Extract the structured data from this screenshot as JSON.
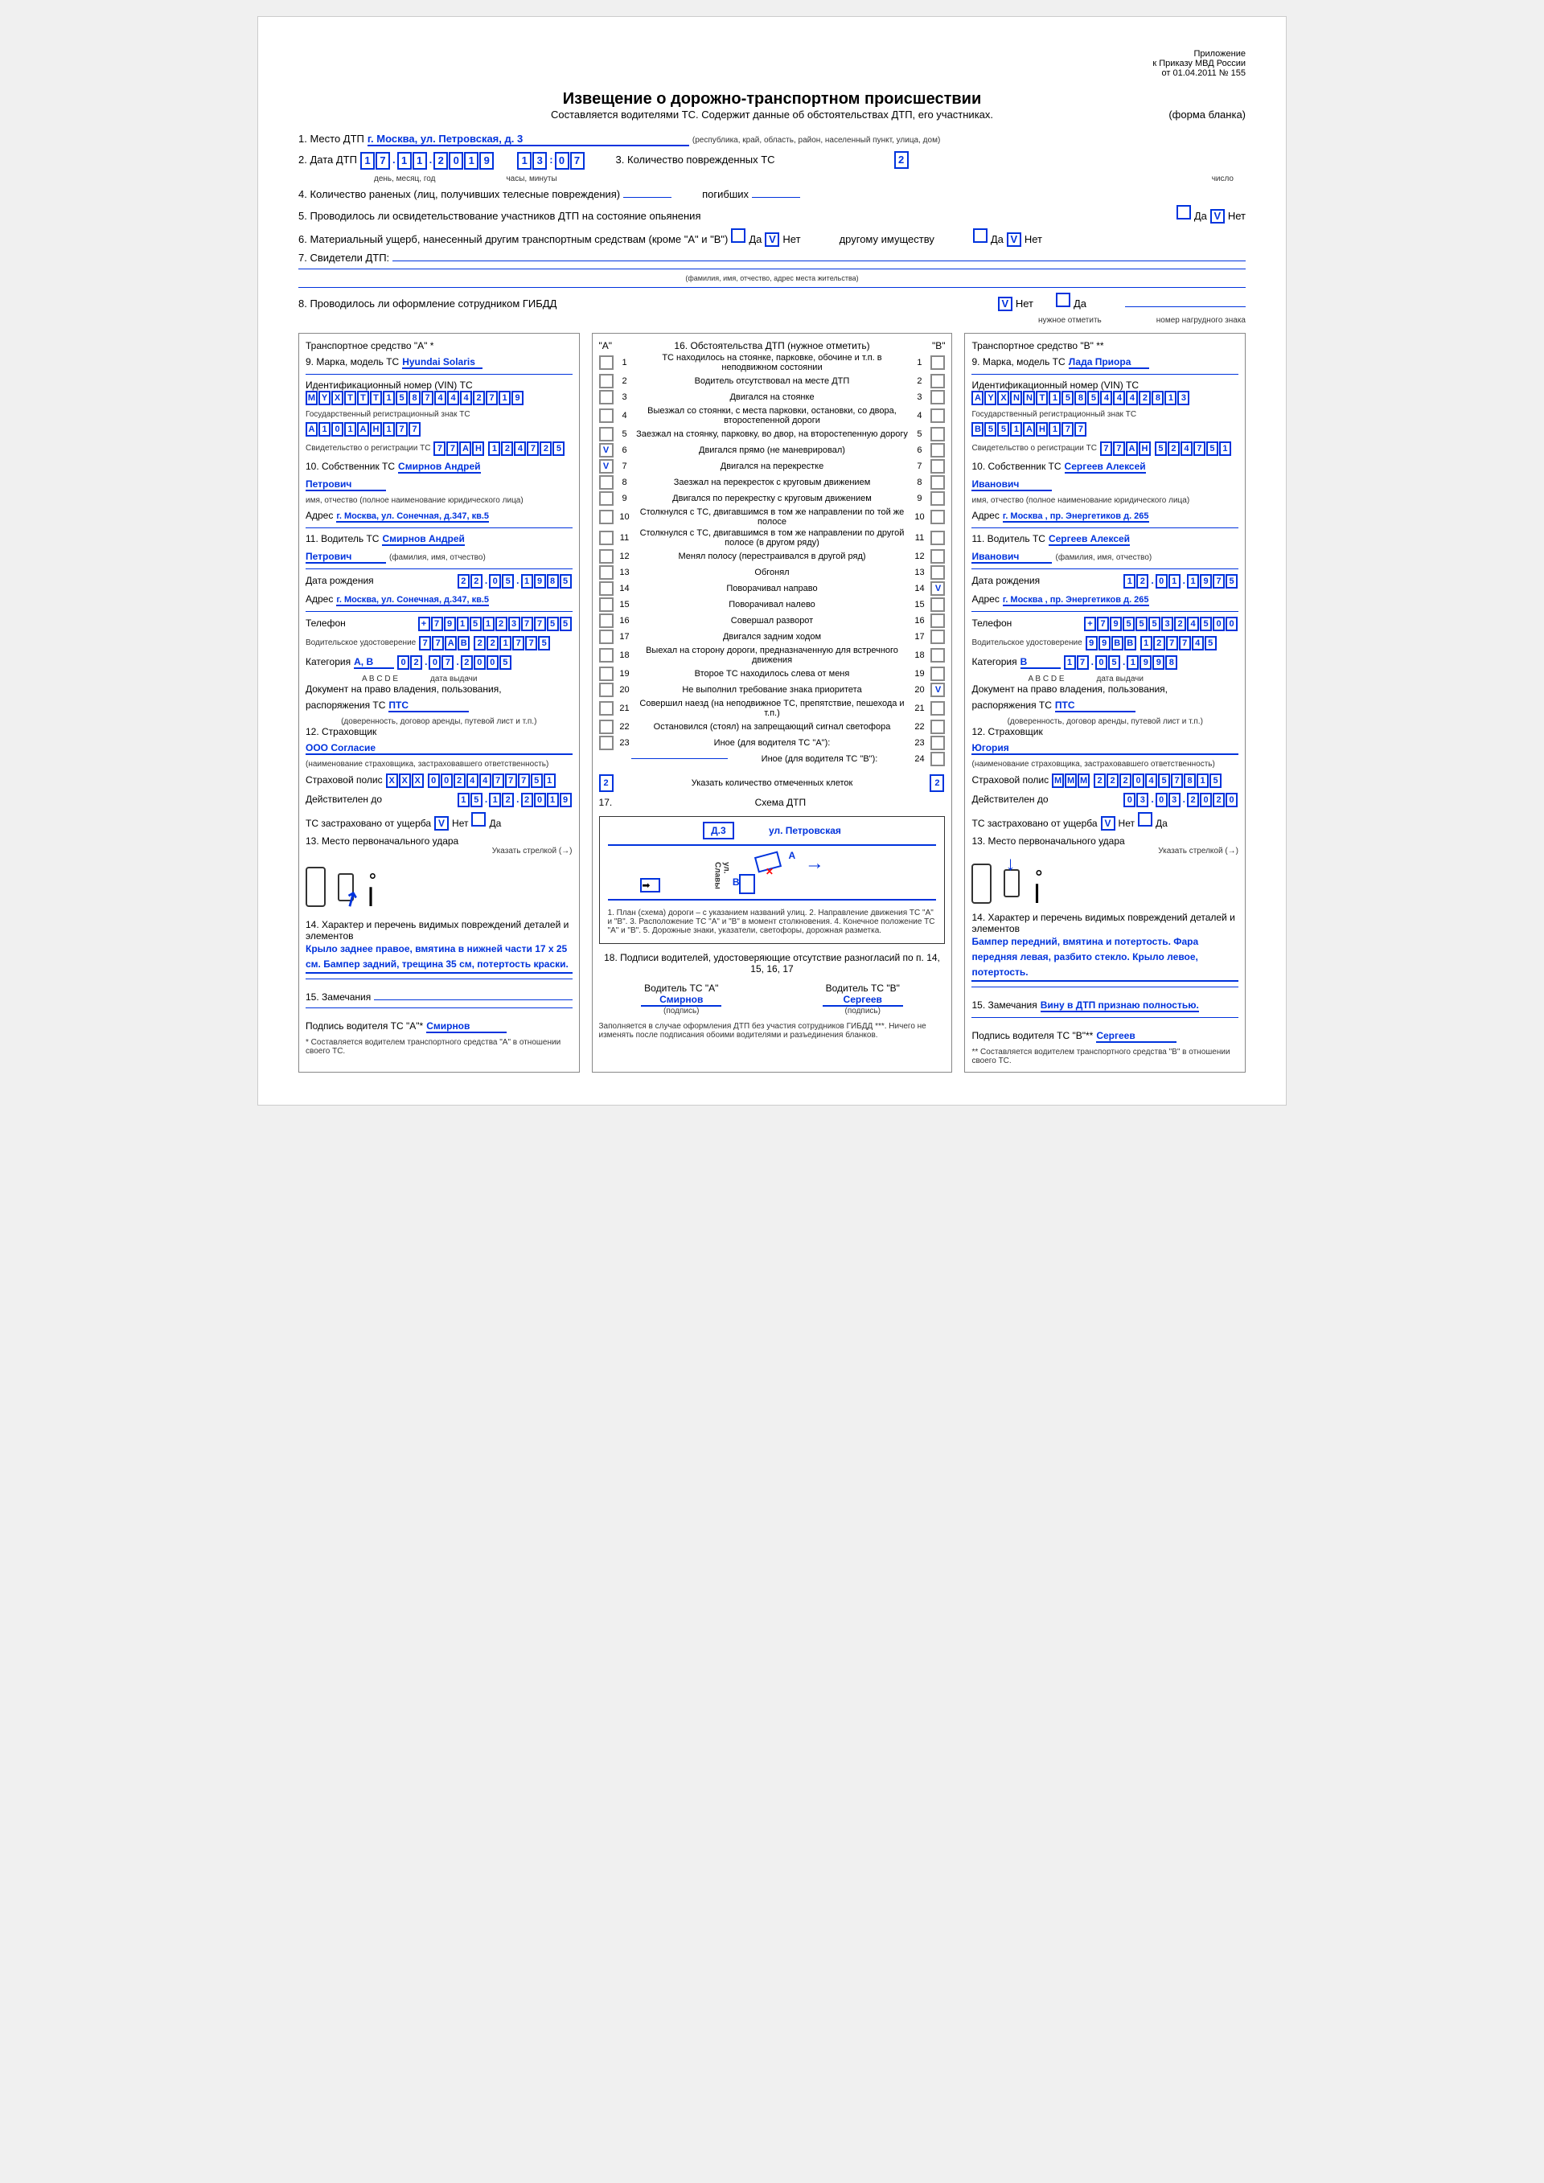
{
  "header": {
    "appendix1": "Приложение",
    "appendix2": "к Приказу МВД России",
    "appendix3": "от 01.04.2011 № 155",
    "title": "Извещение о дорожно-транспортном происшествии",
    "subtitle": "Составляется водителями ТС. Содержит данные об обстоятельствах ДТП, его участниках.",
    "formType": "(форма бланка)"
  },
  "q1": {
    "label": "1. Место ДТП",
    "value": "г. Москва, ул. Петровская, д. 3",
    "hint": "(республика, край, область, район, населенный пункт, улица, дом)"
  },
  "q2": {
    "label": "2. Дата ДТП",
    "date": [
      "1",
      "7",
      ".",
      "1",
      "1",
      ".",
      "2",
      "0",
      "1",
      "9"
    ],
    "time": [
      "1",
      "3",
      ":",
      "0",
      "7"
    ],
    "hint1": "день, месяц, год",
    "hint2": "часы, минуты"
  },
  "q3": {
    "label": "3. Количество поврежденных ТС",
    "value": "2",
    "hint": "число"
  },
  "q4": {
    "label": "4. Количество раненых (лиц, получивших телесные повреждения)",
    "hint1": "число",
    "dead": "погибших",
    "hint2": "число"
  },
  "q5": {
    "label": "5. Проводилось ли освидетельствование участников ДТП на состояние опьянения",
    "yes": "Да",
    "no": "Нет",
    "noChk": "V",
    "hint": "нужное отметить"
  },
  "q6": {
    "label": "6. Материальный ущерб, нанесенный другим транспортным средствам (кроме \"А\" и \"В\")",
    "yes": "Да",
    "no": "Нет",
    "noChk": "V",
    "other": "другому имуществу",
    "yes2": "Да",
    "no2": "Нет",
    "noChk2": "V",
    "hint": "нужное отметить"
  },
  "q7": {
    "label": "7. Свидетели ДТП:",
    "hint": "(фамилия, имя, отчество, адрес места жительства)"
  },
  "q8": {
    "label": "8. Проводилось ли оформление сотрудником ГИБДД",
    "no": "Нет",
    "noChk": "V",
    "yes": "Да",
    "hint": "нужное отметить",
    "badge": "номер нагрудного знака"
  },
  "vehA": {
    "title": "Транспортное средство \"А\" *",
    "q9l": "9. Марка, модель ТС",
    "q9v": "Hyundai Solaris",
    "vinL": "Идентификационный номер (VIN) ТС",
    "vin": [
      "M",
      "Y",
      "X",
      "T",
      "T",
      "T",
      "1",
      "5",
      "8",
      "7",
      "4",
      "4",
      "4",
      "2",
      "7",
      "1",
      "9"
    ],
    "regL": "Государственный регистрационный знак ТС",
    "reg": [
      "А",
      "1",
      "0",
      "1",
      "А",
      "Н",
      "1",
      "7",
      "7"
    ],
    "certL": "Свидетельство о регистрации ТС",
    "certS": [
      "7",
      "7",
      "А",
      "Н"
    ],
    "certN": [
      "1",
      "2",
      "4",
      "7",
      "2",
      "5"
    ],
    "seriesH": "серия",
    "numH": "номер",
    "q10l": "10. Собственник ТС",
    "q10v": "Смирнов Андрей",
    "q10v2": "Петрович",
    "q10h": "(фамилия,",
    "q10h2": "имя, отчество (полное наименование юридического лица)",
    "addrL": "Адрес",
    "addrV": "г. Москва, ул. Сонечная, д.347, кв.5",
    "q11l": "11. Водитель ТС",
    "q11v": "Смирнов Андрей",
    "q11v2": "Петрович",
    "q11h": "(фамилия, имя, отчество)",
    "dobL": "Дата рождения",
    "dob": [
      "2",
      "2",
      ".",
      "0",
      "5",
      ".",
      "1",
      "9",
      "8",
      "5"
    ],
    "dobH": "день, месяц, год",
    "addr2V": "г. Москва, ул. Сонечная, д.347, кв.5",
    "telL": "Телефон",
    "tel": [
      "+",
      "7",
      "9",
      "1",
      "5",
      "1",
      "2",
      "3",
      "7",
      "7",
      "5",
      "5"
    ],
    "licL": "Водительское удостоверение",
    "licS": [
      "7",
      "7",
      "А",
      "В"
    ],
    "licN": [
      "2",
      "2",
      "1",
      "7",
      "7",
      "5"
    ],
    "catL": "Категория",
    "catV": "А, В",
    "catH": "A B C D E",
    "catD": [
      "0",
      "2",
      ".",
      "0",
      "7",
      ".",
      "2",
      "0",
      "0",
      "5"
    ],
    "catDH": "дата выдачи",
    "docL": "Документ на право владения, пользования,",
    "docL2": "распоряжения ТС",
    "docV": "ПТС",
    "docH": "(доверенность, договор аренды, путевой лист и т.п.)",
    "q12l": "12. Страховщик",
    "q12v": "ООО Согласие",
    "q12h": "(наименование страховщика, застраховавшего ответственность)",
    "polL": "Страховой полис",
    "polS": [
      "Х",
      "Х",
      "Х"
    ],
    "polN": [
      "0",
      "0",
      "2",
      "4",
      "4",
      "7",
      "7",
      "7",
      "5",
      "1"
    ],
    "validL": "Действителен до",
    "valid": [
      "1",
      "5",
      ".",
      "1",
      "2",
      ".",
      "2",
      "0",
      "1",
      "9"
    ],
    "insL": "ТС застраховано от ущерба",
    "insNo": "Нет",
    "insNoChk": "V",
    "insYes": "Да",
    "q13l": "13. Место первоначального удара",
    "q13h": "Указать стрелкой (→)",
    "q14l": "14. Характер и перечень видимых повреждений деталей и элементов",
    "q14v": "Крыло заднее правое, вмятина в нижней части 17 х 25 см. Бампер задний, трещина 35 см, потертость краски.",
    "q15l": "15. Замечания",
    "sigL": "Подпись водителя ТС \"А\"*",
    "sigV": "Смирнов",
    "foot": "* Составляется водителем транспортного средства \"А\" в отношении своего ТС."
  },
  "circ": {
    "title": "16. Обстоятельства ДТП (нужное отметить)",
    "labA": "\"А\"",
    "labB": "\"В\"",
    "items": [
      "ТС находилось на стоянке, парковке, обочине и т.п. в неподвижном состоянии",
      "Водитель отсутствовал на месте ДТП",
      "Двигался на стоянке",
      "Выезжал со стоянки, с места парковки, остановки, со двора, второстепенной дороги",
      "Заезжал на стоянку, парковку, во двор, на второстепенную дорогу",
      "Двигался прямо (не маневрировал)",
      "Двигался на перекрестке",
      "Заезжал на перекресток с круговым движением",
      "Двигался по перекрестку с круговым движением",
      "Столкнулся с ТС, двигавшимся в том же направлении по той же полосе",
      "Столкнулся с ТС, двигавшимся в том же направлении по другой полосе (в другом ряду)",
      "Менял полосу (перестраивался в другой ряд)",
      "Обгонял",
      "Поворачивал направо",
      "Поворачивал налево",
      "Совершал разворот",
      "Двигался задним ходом",
      "Выехал на сторону дороги, предназначенную для встречного движения",
      "Второе ТС находилось слева от меня",
      "Не выполнил требование знака приоритета",
      "Совершил наезд (на неподвижное ТС, препятствие, пешехода и т.п.)",
      "Остановился (стоял) на запрещающий сигнал светофора",
      "Иное (для водителя ТС \"А\"):"
    ],
    "chkA": {
      "6": "V",
      "7": "V"
    },
    "chkB": {
      "14": "V",
      "20": "V"
    },
    "otherB": "Иное (для водителя ТС \"В\"):",
    "countL": "Указать количество отмеченных клеток",
    "countA": "2",
    "countB": "2",
    "q17": "17.",
    "schemeL": "Схема ДТП",
    "schemeAddr": "Д.3",
    "schemeStreet": "ул. Петровская",
    "schemeStreet2": "ул. Славы",
    "schemeA": "А",
    "schemeB": "В",
    "schemeH": "1. План (схема) дороги – с указанием названий улиц.   2. Направление движения ТС \"А\" и \"В\".   3. Расположение ТС \"А\" и \"В\" в момент столкновения.   4. Конечное положение ТС \"А\" и \"В\".   5. Дорожные знаки, указатели, светофоры, дорожная разметка.",
    "q18": "18. Подписи водителей, удостоверяющие отсутствие разногласий по п. 14, 15, 16, 17",
    "sigA": "Водитель ТС \"А\"",
    "sigAV": "Смирнов",
    "sigB": "Водитель ТС \"В\"",
    "sigBV": "Сергеев",
    "sigH": "(подпись)",
    "foot": "Заполняется в случае оформления ДТП без участия сотрудников ГИБДД ***. Ничего не изменять после подписания обоими водителями и разъединения бланков."
  },
  "vehB": {
    "title": "Транспортное средство \"В\" **",
    "q9l": "9. Марка, модель ТС",
    "q9v": "Лада Приора",
    "vinL": "Идентификационный номер (VIN) ТС",
    "vin": [
      "А",
      "Y",
      "X",
      "N",
      "N",
      "T",
      "1",
      "5",
      "8",
      "5",
      "4",
      "4",
      "4",
      "2",
      "8",
      "1",
      "3"
    ],
    "regL": "Государственный регистрационный знак ТС",
    "reg": [
      "В",
      "5",
      "5",
      "1",
      "А",
      "Н",
      "1",
      "7",
      "7"
    ],
    "certL": "Свидетельство о регистрации ТС",
    "certS": [
      "7",
      "7",
      "А",
      "Н"
    ],
    "certN": [
      "5",
      "2",
      "4",
      "7",
      "5",
      "1"
    ],
    "q10l": "10. Собственник ТС",
    "q10v": "Сергеев Алексей",
    "q10v2": "Иванович",
    "addrL": "Адрес",
    "addrV": "г. Москва , пр. Энергетиков д. 265",
    "q11l": "11. Водитель ТС",
    "q11v": "Сергеев Алексей",
    "q11v2": "Иванович",
    "dobL": "Дата рождения",
    "dob": [
      "1",
      "2",
      ".",
      "0",
      "1",
      ".",
      "1",
      "9",
      "7",
      "5"
    ],
    "addr2V": "г. Москва , пр. Энергетиков д. 265",
    "telL": "Телефон",
    "tel": [
      "+",
      "7",
      "9",
      "5",
      "5",
      "5",
      "3",
      "2",
      "4",
      "5",
      "0",
      "0"
    ],
    "licL": "Водительское удостоверение",
    "licS": [
      "9",
      "9",
      "В",
      "В"
    ],
    "licN": [
      "1",
      "2",
      "7",
      "7",
      "4",
      "5"
    ],
    "catL": "Категория",
    "catV": "В",
    "catD": [
      "1",
      "7",
      ".",
      "0",
      "5",
      ".",
      "1",
      "9",
      "9",
      "8"
    ],
    "docL": "Документ на право владения, пользования,",
    "docL2": "распоряжения ТС",
    "docV": "ПТС",
    "q12l": "12. Страховщик",
    "q12v": "Югория",
    "polL": "Страховой полис",
    "polS": [
      "М",
      "М",
      "М"
    ],
    "polN": [
      "2",
      "2",
      "2",
      "0",
      "4",
      "5",
      "7",
      "8",
      "1",
      "5"
    ],
    "validL": "Действителен до",
    "valid": [
      "0",
      "3",
      ".",
      "0",
      "3",
      ".",
      "2",
      "0",
      "2",
      "0"
    ],
    "insL": "ТС застраховано от ущерба",
    "insNo": "Нет",
    "insNoChk": "V",
    "insYes": "Да",
    "q13l": "13. Место первоначального удара",
    "q14l": "14. Характер и перечень видимых повреждений деталей и элементов",
    "q14v": "Бампер передний, вмятина и потертость. Фара передняя левая, разбито стекло. Крыло левое, потертость.",
    "q15l": "15. Замечания",
    "q15v": "Вину в ДТП признаю полностью.",
    "sigL": "Подпись водителя ТС \"В\"**",
    "sigV": "Сергеев",
    "foot": "** Составляется водителем транспортного средства \"В\" в отношении своего ТС."
  }
}
